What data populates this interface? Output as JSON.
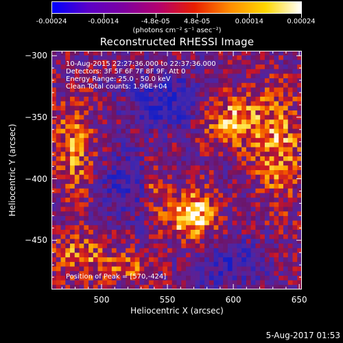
{
  "colorbar": {
    "tick_labels": [
      "-0.00024",
      "-0.00014",
      "-4.8e-05",
      "4.8e-05",
      "0.00014",
      "0.00024"
    ],
    "units_text": "(photons cm⁻² s⁻¹ asec⁻²)",
    "colors": [
      "#0000ff",
      "#5a00c8",
      "#7d00a0",
      "#b4006e",
      "#e81e00",
      "#ff8c00",
      "#ffd700",
      "#ffffff"
    ]
  },
  "title": "Reconstructed RHESSI Image",
  "annotations": {
    "time_range": "10-Aug-2015 22:27:36.000 to 22:37:36.000",
    "detectors": "Detectors: 3F 5F 6F 7F 8F 9F, Att 0",
    "energy_range": "Energy Range: 25.0 - 50.0 keV",
    "clean": "Clean     Total counts: 1.96E+04",
    "peak": "Position of Peak = [570,-424]"
  },
  "chart_data": {
    "type": "heatmap",
    "title": "Reconstructed RHESSI Image",
    "xlabel": "Heliocentric X (arcsec)",
    "ylabel": "Heliocentric Y (arcsec)",
    "xlim": [
      462,
      652
    ],
    "ylim": [
      -490,
      -296
    ],
    "x_ticks": [
      "500",
      "550",
      "600",
      "650"
    ],
    "y_ticks": [
      "-300",
      "-350",
      "-400",
      "-450"
    ],
    "color_range": [
      -0.00024,
      0.00024
    ],
    "peak_position": [
      570,
      -424
    ]
  },
  "footer": {
    "date": "5-Aug-2017 01:53"
  }
}
